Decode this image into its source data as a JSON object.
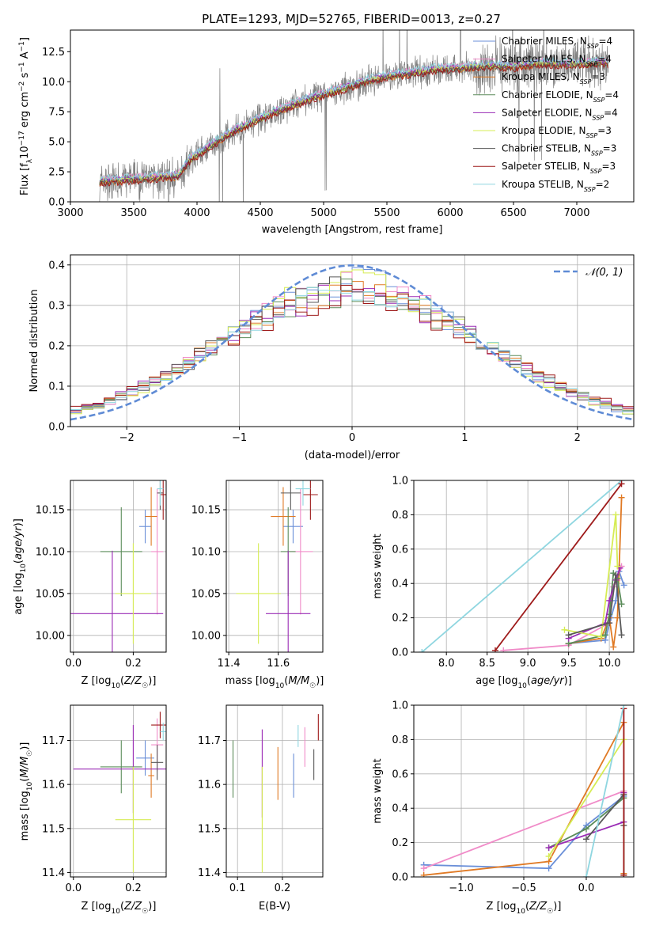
{
  "figure": {
    "title": "PLATE=1293, MJD=52765, FIBERID=0013, z=0.27"
  },
  "colors": {
    "chabrier_miles": "#6a8fd8",
    "salpeter_miles": "#f08bc8",
    "kroupa_miles": "#e07a25",
    "chabrier_elodie": "#5b8c5a",
    "salpeter_elodie": "#9a2bb5",
    "kroupa_elodie": "#d6ec54",
    "chabrier_stelib": "#595959",
    "salpeter_stelib": "#9e1a1a",
    "kroupa_stelib": "#8fd6e0",
    "data": "#808080",
    "gaussian": "#5f8bd5"
  },
  "chart_data": [
    {
      "id": "spectrum",
      "type": "line",
      "title": "PLATE=1293, MJD=52765, FIBERID=0013, z=0.27",
      "xlabel": "wavelength [Angstrom, rest frame]",
      "ylabel": "Flux [f$_\\lambda$10$^{-17}$ erg cm$^{-2}$ s$^{-1}$ A$^{-1}$]",
      "ylabel_parts": {
        "a": "Flux [f",
        "b": "λ",
        "c": "10",
        "d": "−17",
        "e": " erg cm",
        "f": "−2",
        "g": " s",
        "h": "−1",
        "i": " A",
        "j": "−1",
        "k": "]"
      },
      "xlim": [
        3000,
        7450
      ],
      "ylim": [
        0,
        14.3
      ],
      "xticks": [
        "3000",
        "3500",
        "4000",
        "4500",
        "5000",
        "5500",
        "6000",
        "6500",
        "7000"
      ],
      "yticks": [
        "0.0",
        "2.5",
        "5.0",
        "7.5",
        "10.0",
        "12.5"
      ],
      "model_continuum": {
        "x": [
          3230,
          3400,
          3550,
          3700,
          3850,
          3950,
          4100,
          4300,
          4500,
          4700,
          4900,
          5100,
          5300,
          5500,
          5700,
          5900,
          6100,
          6300,
          6500,
          6700,
          6900,
          7100,
          7250
        ],
        "y": [
          1.7,
          1.75,
          1.9,
          2.0,
          2.1,
          3.5,
          4.6,
          5.9,
          6.9,
          7.8,
          8.6,
          9.2,
          9.9,
          10.4,
          10.7,
          11.0,
          11.1,
          11.3,
          11.2,
          11.5,
          11.4,
          11.5,
          11.5
        ]
      },
      "legend": [
        {
          "label": "Chabrier MILES, N",
          "sub": "SSP",
          "tail": "=4",
          "color": "#6a8fd8"
        },
        {
          "label": "Salpeter MILES, N",
          "sub": "SSP",
          "tail": "=4",
          "color": "#f08bc8"
        },
        {
          "label": "Kroupa MILES, N",
          "sub": "SSP",
          "tail": "=3",
          "color": "#e07a25"
        },
        {
          "label": "Chabrier ELODIE, N",
          "sub": "SSP",
          "tail": "=4",
          "color": "#5b8c5a"
        },
        {
          "label": "Salpeter ELODIE, N",
          "sub": "SSP",
          "tail": "=4",
          "color": "#9a2bb5"
        },
        {
          "label": "Kroupa ELODIE, N",
          "sub": "SSP",
          "tail": "=3",
          "color": "#d6ec54"
        },
        {
          "label": "Chabrier STELIB, N",
          "sub": "SSP",
          "tail": "=3",
          "color": "#595959"
        },
        {
          "label": "Salpeter STELIB, N",
          "sub": "SSP",
          "tail": "=3",
          "color": "#9e1a1a"
        },
        {
          "label": "Kroupa STELIB, N",
          "sub": "SSP",
          "tail": "=2",
          "color": "#8fd6e0"
        }
      ],
      "legend_position": "upper right"
    },
    {
      "id": "residuals",
      "type": "histogram",
      "xlabel": "(data-model)/error",
      "ylabel": "Normed distribution",
      "xlim": [
        -2.5,
        2.5
      ],
      "ylim": [
        0,
        0.425
      ],
      "xticks": [
        "−2",
        "−1",
        "0",
        "1",
        "2"
      ],
      "yticks": [
        "0.0",
        "0.1",
        "0.2",
        "0.3",
        "0.4"
      ],
      "gaussian_label": "𝒩(0, 1)",
      "legend_position": "upper right",
      "grid": true
    },
    {
      "id": "age_vs_Z",
      "type": "errorbar",
      "xlabel": "Z [log10(Z/Z☉)]",
      "ylabel": "age [log10(age/yr)]",
      "xlim": [
        -0.01,
        0.31
      ],
      "ylim": [
        9.98,
        10.185
      ],
      "xticks": [
        "0.0",
        "0.2"
      ],
      "yticks": [
        "10.00",
        "10.05",
        "10.10",
        "10.15"
      ],
      "points": [
        {
          "x": 0.24,
          "xerr": 0.02,
          "y": 10.13,
          "yerr": 0.02,
          "color": "#6a8fd8"
        },
        {
          "x": 0.28,
          "xerr": 0.02,
          "y": 10.1,
          "yerr": 0.075,
          "color": "#f08bc8"
        },
        {
          "x": 0.26,
          "xerr": 0.02,
          "y": 10.142,
          "yerr": 0.035,
          "color": "#e07a25"
        },
        {
          "x": 0.16,
          "xerr": 0.07,
          "y": 10.1,
          "yerr": 0.053,
          "color": "#5b8c5a"
        },
        {
          "x": 0.13,
          "xerr": 0.17,
          "y": 10.026,
          "yerr": 0.075,
          "color": "#9a2bb5"
        },
        {
          "x": 0.2,
          "xerr": 0.06,
          "y": 10.05,
          "yerr": 0.06,
          "color": "#d6ec54"
        },
        {
          "x": 0.29,
          "xerr": 0.01,
          "y": 10.17,
          "yerr": 0.02,
          "color": "#595959"
        },
        {
          "x": 0.3,
          "xerr": 0.01,
          "y": 10.168,
          "yerr": 0.03,
          "color": "#9e1a1a"
        },
        {
          "x": 0.29,
          "xerr": 0.01,
          "y": 10.175,
          "yerr": 0.02,
          "color": "#8fd6e0"
        }
      ]
    },
    {
      "id": "age_vs_mass",
      "type": "errorbar",
      "xlabel": "mass [log10(M/M☉)]",
      "xlim": [
        11.39,
        11.78
      ],
      "ylim": [
        9.98,
        10.185
      ],
      "xticks": [
        "11.4",
        "11.6"
      ],
      "yticks": [
        "10.00",
        "10.05",
        "10.10",
        "10.15"
      ],
      "points": [
        {
          "x": 11.66,
          "xerr": 0.04,
          "y": 10.13,
          "yerr": 0.02,
          "color": "#6a8fd8"
        },
        {
          "x": 11.69,
          "xerr": 0.05,
          "y": 10.1,
          "yerr": 0.075,
          "color": "#f08bc8"
        },
        {
          "x": 11.62,
          "xerr": 0.05,
          "y": 10.142,
          "yerr": 0.035,
          "color": "#e07a25"
        },
        {
          "x": 11.64,
          "xerr": 0.03,
          "y": 10.1,
          "yerr": 0.053,
          "color": "#5b8c5a"
        },
        {
          "x": 11.64,
          "xerr": 0.09,
          "y": 10.026,
          "yerr": 0.075,
          "color": "#9a2bb5"
        },
        {
          "x": 11.52,
          "xerr": 0.09,
          "y": 10.05,
          "yerr": 0.06,
          "color": "#d6ec54"
        },
        {
          "x": 11.65,
          "xerr": 0.04,
          "y": 10.17,
          "yerr": 0.02,
          "color": "#595959"
        },
        {
          "x": 11.73,
          "xerr": 0.03,
          "y": 10.168,
          "yerr": 0.03,
          "color": "#9e1a1a"
        },
        {
          "x": 11.7,
          "xerr": 0.03,
          "y": 10.175,
          "yerr": 0.02,
          "color": "#8fd6e0"
        }
      ]
    },
    {
      "id": "weight_vs_age",
      "type": "line",
      "xlabel": "age [log10(age/yr)]",
      "ylabel": "mass weight",
      "xlim": [
        7.6,
        10.3
      ],
      "ylim": [
        0,
        1.0
      ],
      "xticks": [
        "8.0",
        "8.5",
        "9.0",
        "9.5",
        "10.0"
      ],
      "yticks": [
        "0.0",
        "0.2",
        "0.4",
        "0.6",
        "0.8",
        "1.0"
      ],
      "grid": true,
      "series": [
        {
          "color": "#8fd6e0",
          "x": [
            7.7,
            10.15
          ],
          "y": [
            0.0,
            1.0
          ]
        },
        {
          "color": "#9e1a1a",
          "x": [
            8.6,
            10.15
          ],
          "y": [
            0.01,
            0.98
          ]
        },
        {
          "color": "#f08bc8",
          "x": [
            8.7,
            9.5,
            10.0,
            10.05,
            10.1,
            10.15
          ],
          "y": [
            0.01,
            0.04,
            0.17,
            0.38,
            0.42,
            0.5
          ]
        },
        {
          "color": "#6a8fd8",
          "x": [
            9.5,
            9.95,
            10.02,
            10.08,
            10.12,
            10.18
          ],
          "y": [
            0.05,
            0.07,
            0.2,
            0.3,
            0.47,
            0.39
          ]
        },
        {
          "color": "#e07a25",
          "x": [
            9.5,
            9.9,
            10.0,
            10.05,
            10.1,
            10.15
          ],
          "y": [
            0.05,
            0.08,
            0.2,
            0.03,
            0.2,
            0.9
          ]
        },
        {
          "color": "#5b8c5a",
          "x": [
            9.5,
            9.95,
            10.0,
            10.05,
            10.1,
            10.15
          ],
          "y": [
            0.05,
            0.1,
            0.22,
            0.46,
            0.43,
            0.28
          ]
        },
        {
          "color": "#9a2bb5",
          "x": [
            9.5,
            9.95,
            10.0,
            10.08,
            10.13
          ],
          "y": [
            0.08,
            0.17,
            0.3,
            0.42,
            0.49
          ]
        },
        {
          "color": "#d6ec54",
          "x": [
            9.45,
            9.9,
            10.08,
            10.1
          ],
          "y": [
            0.13,
            0.09,
            0.8,
            0.5
          ]
        },
        {
          "color": "#595959",
          "x": [
            9.5,
            10.0,
            10.08,
            10.15
          ],
          "y": [
            0.1,
            0.17,
            0.45,
            0.1
          ]
        }
      ]
    },
    {
      "id": "mass_vs_Z",
      "type": "errorbar",
      "xlabel": "Z [log10(Z/Z☉)]",
      "ylabel": "mass [log10(M/M☉)]",
      "xlim": [
        -0.01,
        0.31
      ],
      "ylim": [
        11.39,
        11.78
      ],
      "xticks": [
        "0.0",
        "0.2"
      ],
      "yticks": [
        "11.4",
        "11.5",
        "11.6",
        "11.7"
      ],
      "points": [
        {
          "x": 0.24,
          "xerr": 0.03,
          "y": 11.66,
          "yerr": 0.04,
          "color": "#6a8fd8"
        },
        {
          "x": 0.28,
          "xerr": 0.02,
          "y": 11.69,
          "yerr": 0.06,
          "color": "#f08bc8"
        },
        {
          "x": 0.26,
          "xerr": 0.01,
          "y": 11.62,
          "yerr": 0.05,
          "color": "#e07a25"
        },
        {
          "x": 0.16,
          "xerr": 0.07,
          "y": 11.64,
          "yerr": 0.06,
          "color": "#5b8c5a"
        },
        {
          "x": 0.2,
          "xerr": 0.2,
          "y": 11.635,
          "yerr": 0.1,
          "color": "#9a2bb5"
        },
        {
          "x": 0.2,
          "xerr": 0.06,
          "y": 11.52,
          "yerr": 0.12,
          "color": "#d6ec54"
        },
        {
          "x": 0.28,
          "xerr": 0.02,
          "y": 11.65,
          "yerr": 0.04,
          "color": "#595959"
        },
        {
          "x": 0.29,
          "xerr": 0.03,
          "y": 11.735,
          "yerr": 0.03,
          "color": "#9e1a1a"
        },
        {
          "x": 0.3,
          "xerr": 0.01,
          "y": 11.72,
          "yerr": 0.02,
          "color": "#8fd6e0"
        }
      ]
    },
    {
      "id": "mass_vs_ebv",
      "type": "errorbar",
      "xlabel": "E(B-V)",
      "xlim": [
        0.075,
        0.29
      ],
      "ylim": [
        11.39,
        11.78
      ],
      "xticks": [
        "0.1",
        "0.2"
      ],
      "yticks": [
        "11.4",
        "11.5",
        "11.6",
        "11.7"
      ],
      "points": [
        {
          "x": 0.225,
          "xerr": 0.0,
          "y": 11.62,
          "yerr": 0.05,
          "color": "#6a8fd8"
        },
        {
          "x": 0.25,
          "xerr": 0.0,
          "y": 11.685,
          "yerr": 0.045,
          "color": "#f08bc8"
        },
        {
          "x": 0.19,
          "xerr": 0.0,
          "y": 11.625,
          "yerr": 0.06,
          "color": "#e07a25"
        },
        {
          "x": 0.09,
          "xerr": 0.0,
          "y": 11.635,
          "yerr": 0.065,
          "color": "#5b8c5a"
        },
        {
          "x": 0.155,
          "xerr": 0.0,
          "y": 11.625,
          "yerr": 0.1,
          "color": "#9a2bb5"
        },
        {
          "x": 0.155,
          "xerr": 0.0,
          "y": 11.52,
          "yerr": 0.12,
          "color": "#d6ec54"
        },
        {
          "x": 0.27,
          "xerr": 0.0,
          "y": 11.645,
          "yerr": 0.035,
          "color": "#595959"
        },
        {
          "x": 0.28,
          "xerr": 0.0,
          "y": 11.73,
          "yerr": 0.03,
          "color": "#9e1a1a"
        },
        {
          "x": 0.235,
          "xerr": 0.0,
          "y": 11.71,
          "yerr": 0.025,
          "color": "#8fd6e0"
        }
      ]
    },
    {
      "id": "weight_vs_Z",
      "type": "line",
      "xlabel": "Z [log10(Z/Z☉)]",
      "ylabel": "mass weight",
      "xlim": [
        -1.38,
        0.38
      ],
      "ylim": [
        0,
        1.0
      ],
      "xticks": [
        "−1.0",
        "−0.5",
        "0.0"
      ],
      "yticks": [
        "0.0",
        "0.2",
        "0.4",
        "0.6",
        "0.8",
        "1.0"
      ],
      "grid": true,
      "series": [
        {
          "color": "#6a8fd8",
          "x": [
            -1.3,
            -0.3,
            0.0,
            0.3
          ],
          "y": [
            0.07,
            0.05,
            0.3,
            0.47
          ]
        },
        {
          "color": "#f08bc8",
          "x": [
            -1.3,
            0.3
          ],
          "y": [
            0.05,
            0.5
          ]
        },
        {
          "color": "#e07a25",
          "x": [
            -1.3,
            -0.3,
            0.3,
            0.3
          ],
          "y": [
            0.01,
            0.09,
            0.9,
            0.02
          ]
        },
        {
          "color": "#5b8c5a",
          "x": [
            -0.3,
            0.0,
            0.3,
            0.3
          ],
          "y": [
            0.17,
            0.28,
            0.46,
            0.01
          ]
        },
        {
          "color": "#9a2bb5",
          "x": [
            -0.3,
            0.3,
            0.3
          ],
          "y": [
            0.17,
            0.32,
            0.49
          ]
        },
        {
          "color": "#d6ec54",
          "x": [
            -0.3,
            0.3
          ],
          "y": [
            0.12,
            0.8
          ]
        },
        {
          "color": "#595959",
          "x": [
            0.0,
            0.3,
            0.3
          ],
          "y": [
            0.22,
            0.48,
            0.3
          ]
        },
        {
          "color": "#9e1a1a",
          "x": [
            0.3,
            0.3
          ],
          "y": [
            0.01,
            0.98
          ]
        },
        {
          "color": "#8fd6e0",
          "x": [
            0.0,
            0.3
          ],
          "y": [
            0.0,
            1.0
          ]
        }
      ]
    }
  ]
}
